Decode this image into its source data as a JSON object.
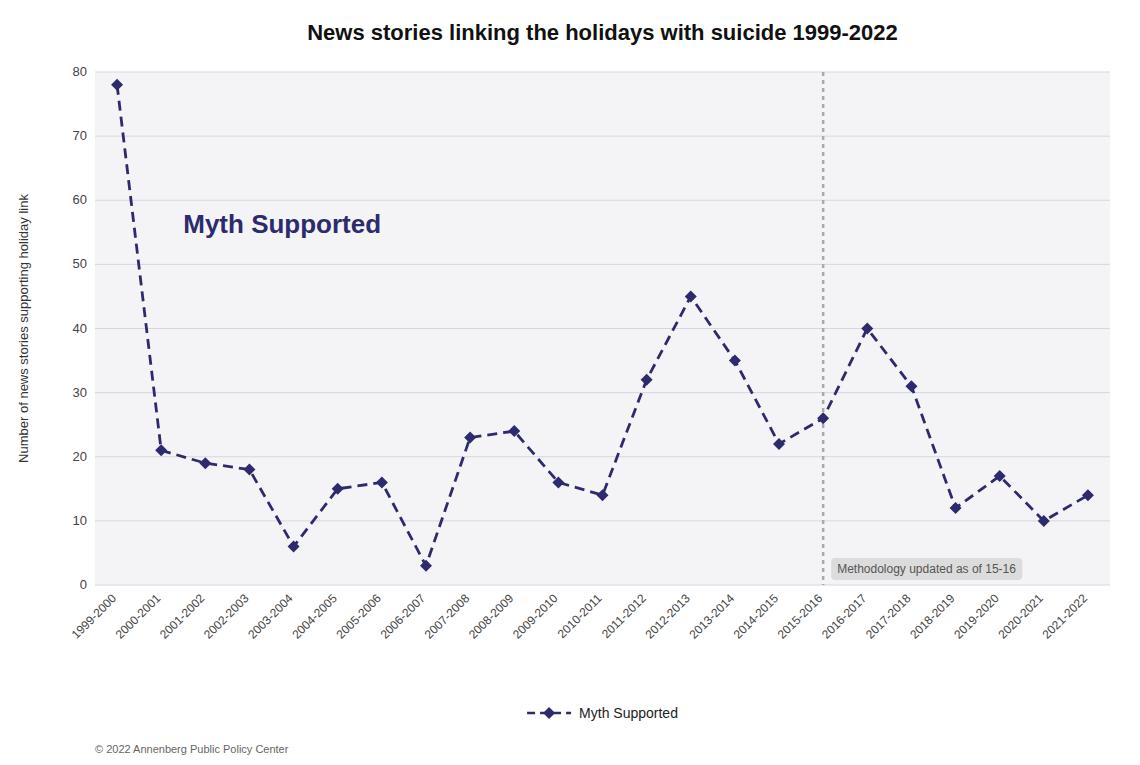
{
  "chart_data": {
    "type": "line",
    "title": "News stories linking the holidays with suicide 1999-2022",
    "y_label": "Number of news stories supporting holiday link",
    "categories": [
      "1999-2000",
      "2000-2001",
      "2001-2002",
      "2002-2003",
      "2003-2004",
      "2004-2005",
      "2005-2006",
      "2006-2007",
      "2007-2008",
      "2008-2009",
      "2009-2010",
      "2010-2011",
      "2011-2012",
      "2012-2013",
      "2013-2014",
      "2014-2015",
      "2015-2016",
      "2016-2017",
      "2017-2018",
      "2018-2019",
      "2019-2020",
      "2020-2021",
      "2021-2022"
    ],
    "series": [
      {
        "name": "Myth Supported",
        "color": "#2d2b6e",
        "marker": "diamond",
        "line_style": "dashed",
        "values": [
          78,
          21,
          19,
          18,
          6,
          15,
          16,
          3,
          23,
          24,
          16,
          14,
          32,
          45,
          35,
          22,
          26,
          40,
          31,
          12,
          17,
          10,
          14
        ]
      }
    ],
    "ylim": [
      0,
      80
    ],
    "yticks": [
      0,
      10,
      20,
      30,
      40,
      50,
      60,
      70,
      80
    ],
    "grid": true,
    "legend": "bottom",
    "annotations": [
      {
        "text": "Myth Supported"
      },
      {
        "text": "Methodology updated as of 15-16",
        "x": "2015-2016"
      }
    ],
    "footer": "© 2022 Annenberg Public Policy Center"
  }
}
